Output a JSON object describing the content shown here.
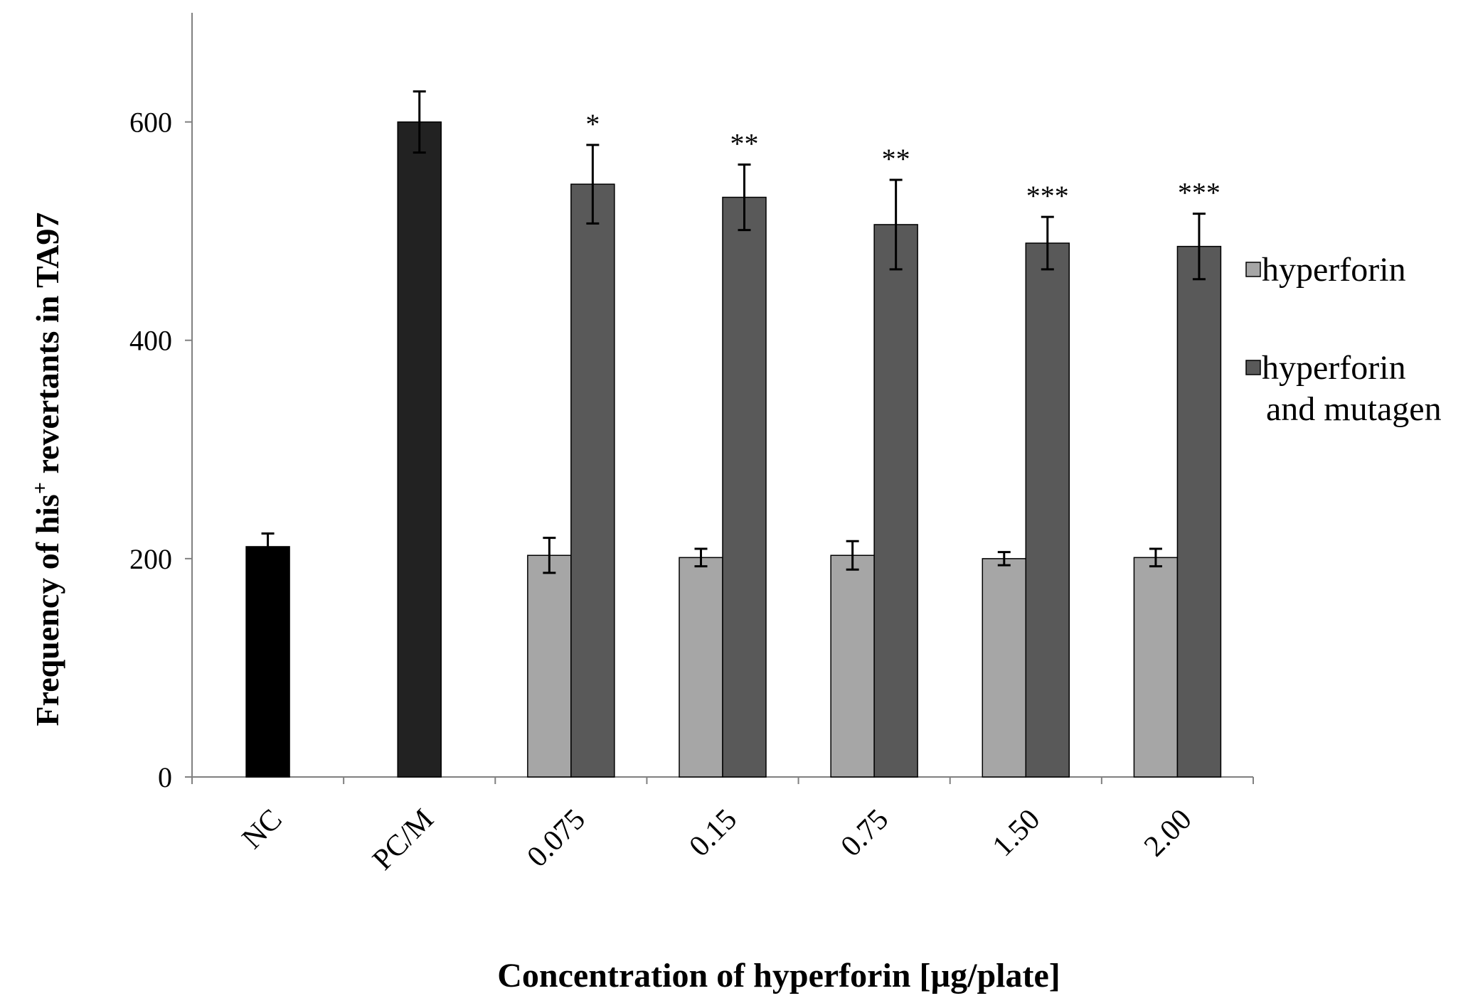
{
  "chart_data": {
    "type": "bar",
    "categories": [
      "NC",
      "PC/M",
      "0.075",
      "0.15",
      "0.75",
      "1.50",
      "2.00"
    ],
    "series": [
      {
        "name": "hyperforin",
        "color": "#a6a6a6",
        "values": [
          null,
          null,
          203,
          201,
          203,
          200,
          201
        ],
        "errors": [
          null,
          null,
          16,
          8,
          13,
          6,
          8
        ]
      },
      {
        "name": "hyperforin and mutagen",
        "color": "#595959",
        "values": [
          null,
          null,
          543,
          531,
          506,
          489,
          486
        ],
        "errors": [
          null,
          null,
          36,
          30,
          41,
          24,
          30
        ],
        "significance": [
          null,
          null,
          "*",
          "**",
          "**",
          "***",
          "***"
        ]
      }
    ],
    "controls": [
      {
        "category": "NC",
        "value": 211,
        "error": 12,
        "color": "#000000"
      },
      {
        "category": "PC/M",
        "value": 600,
        "error": 28,
        "color": "#222222"
      }
    ],
    "legend": {
      "position": "right",
      "entries": [
        {
          "label_lines": [
            "hyperforin"
          ],
          "color": "#a6a6a6"
        },
        {
          "label_lines": [
            "hyperforin",
            "and mutagen"
          ],
          "color": "#595959"
        }
      ]
    },
    "title": "",
    "xlabel": "Concentration of hyperforin [µg/plate]",
    "ylabel_parts": {
      "prefix": "Frequency of his",
      "superscript": "+",
      "suffix": " revertants in TA97"
    },
    "ylim": [
      0,
      700
    ],
    "yticks": [
      0,
      200,
      400,
      600
    ],
    "grid": false
  }
}
